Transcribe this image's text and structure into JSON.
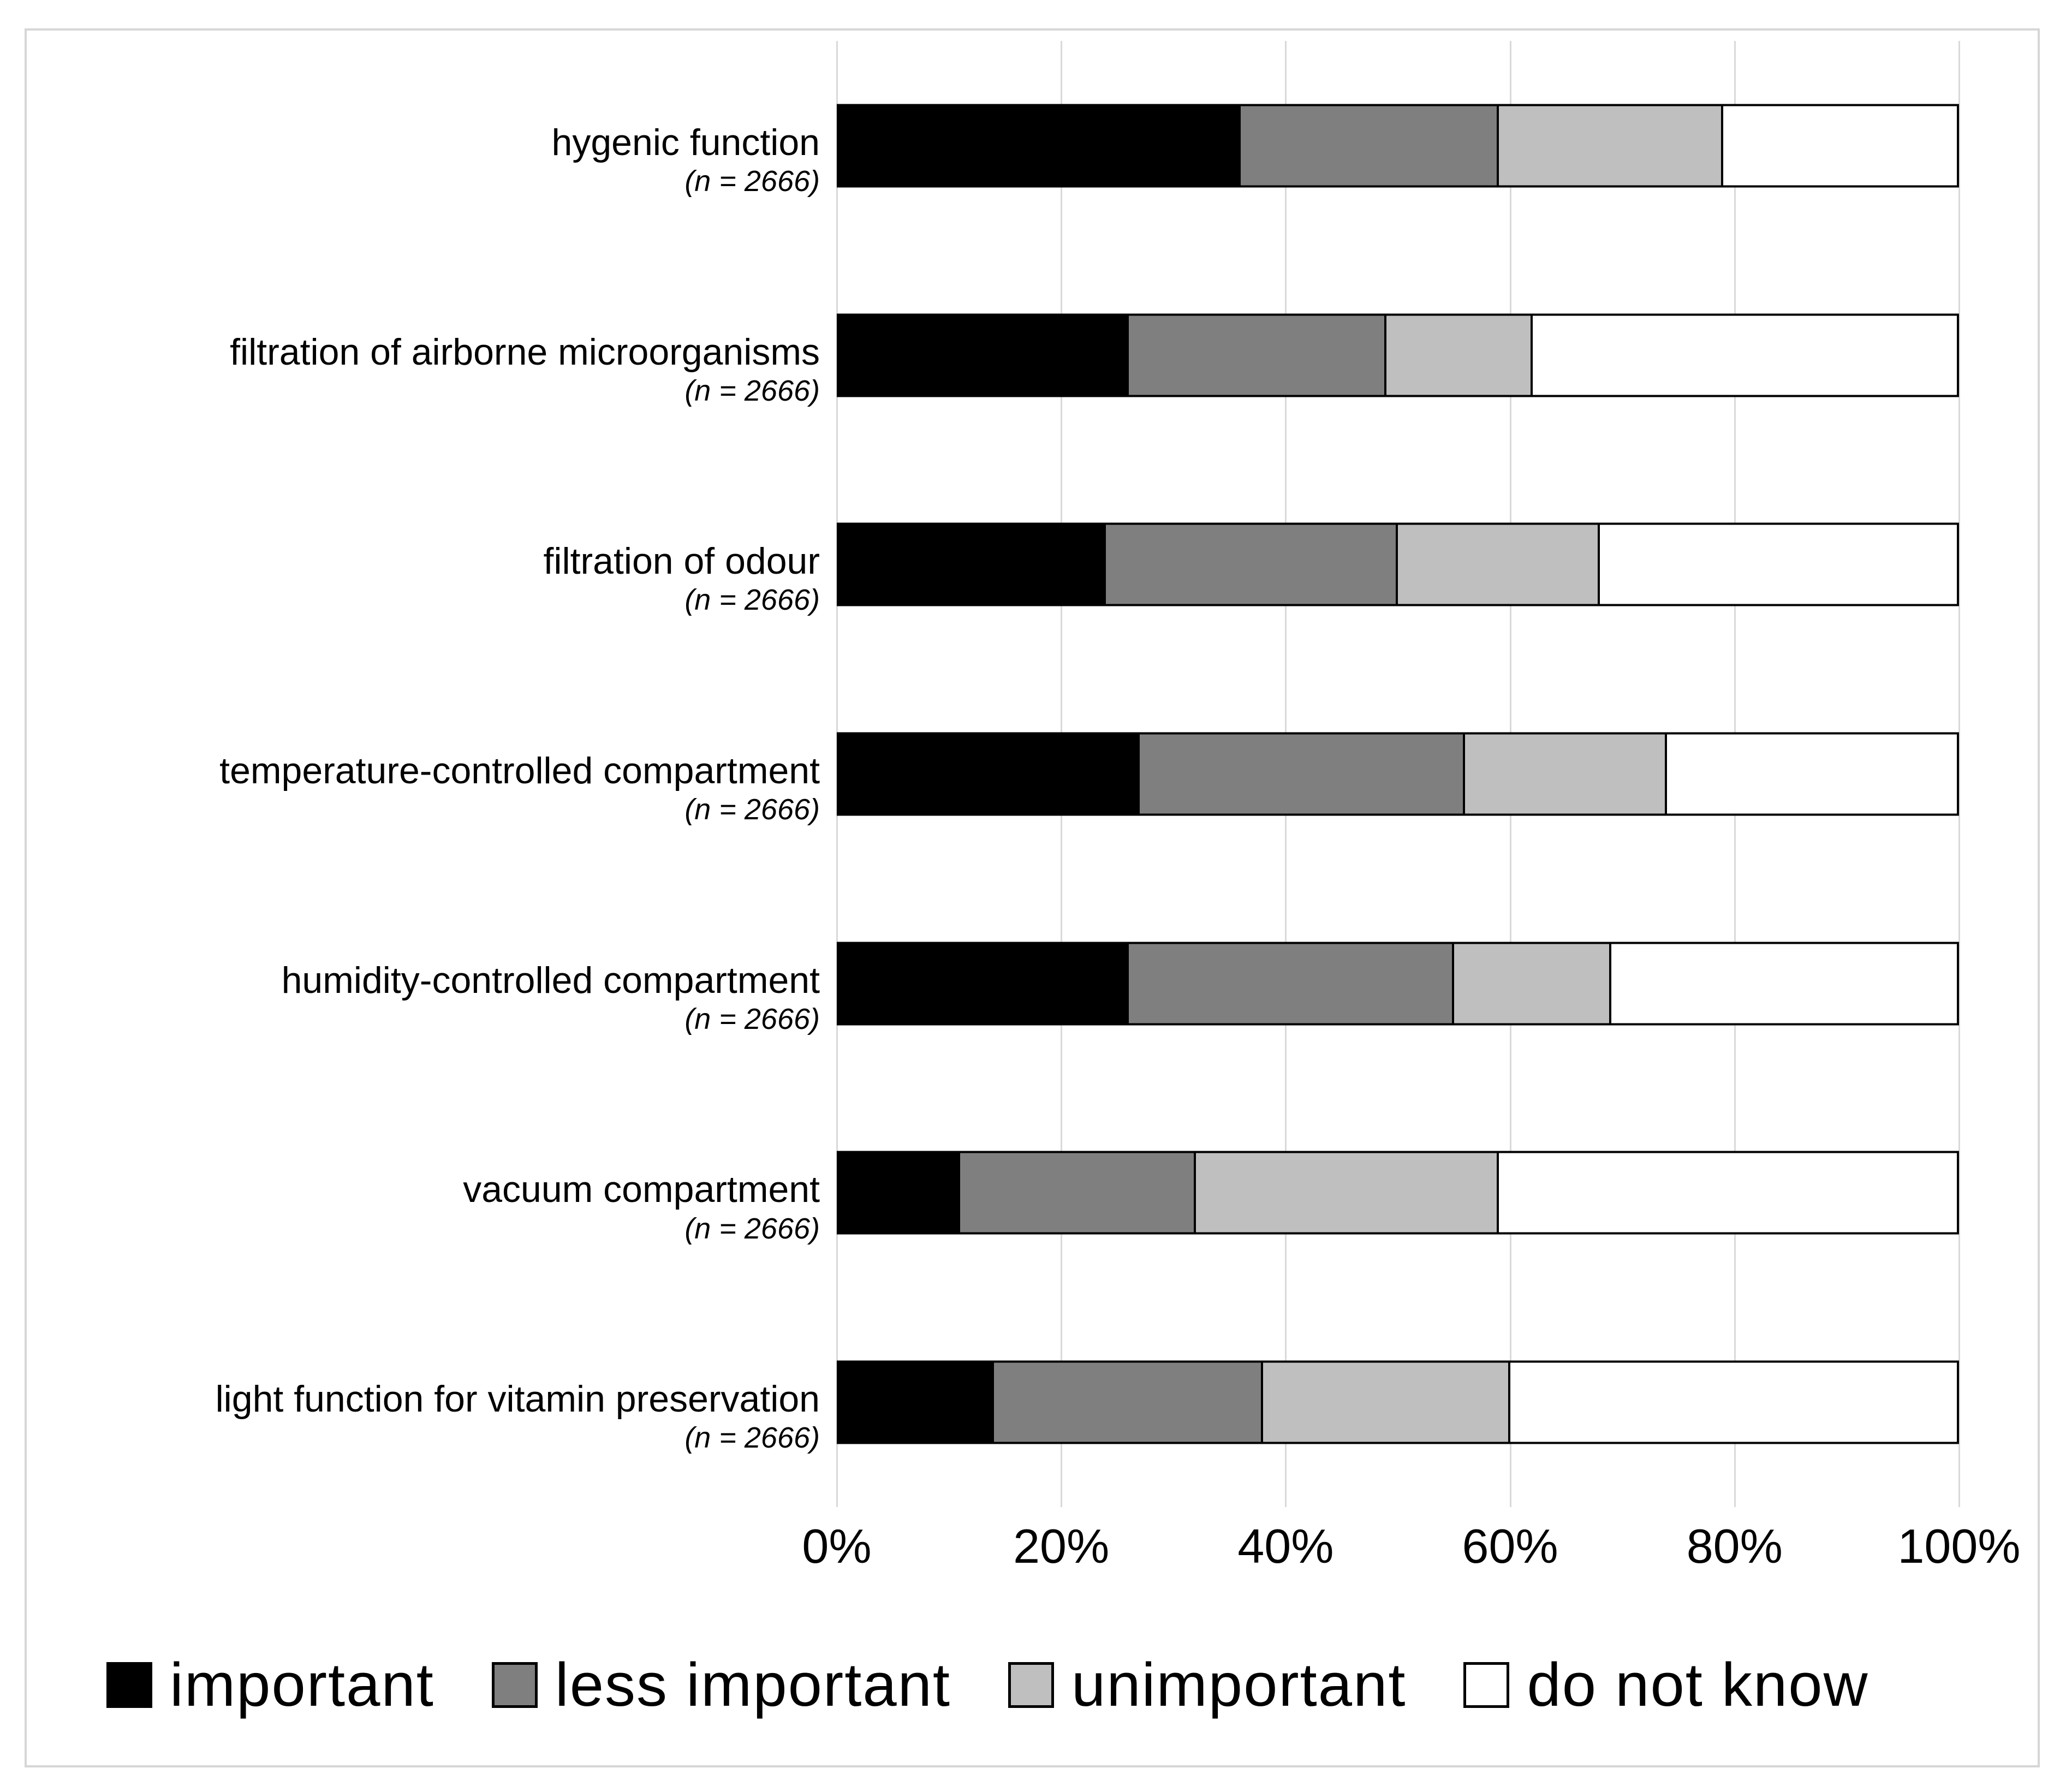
{
  "figure": {
    "background_color": "#ffffff",
    "frame_color": "#d6d6d6",
    "gridline_color": "#d9d9d9"
  },
  "chart_data": {
    "type": "bar",
    "orientation": "horizontal_stacked",
    "title": "",
    "xlabel": "",
    "ylabel": "",
    "xlim": [
      0,
      100
    ],
    "x_tick_labels": [
      "0%",
      "20%",
      "40%",
      "60%",
      "80%",
      "100%"
    ],
    "grid": true,
    "legend_position": "bottom",
    "categories": [
      {
        "label": "hygenic function",
        "note": "(n = 2666)"
      },
      {
        "label": "filtration of airborne microorganisms",
        "note": "(n = 2666)"
      },
      {
        "label": "filtration of odour",
        "note": "(n = 2666)"
      },
      {
        "label": "temperature-controlled compartment",
        "note": "(n = 2666)"
      },
      {
        "label": "humidity-controlled compartment",
        "note": "(n = 2666)"
      },
      {
        "label": "vacuum compartment",
        "note": "(n = 2666)"
      },
      {
        "label": "light function for vitamin preservation",
        "note": "(n = 2666)"
      }
    ],
    "series": [
      {
        "name": "important",
        "color": "#000000",
        "values": [
          36,
          26,
          24,
          27,
          26,
          11,
          14
        ]
      },
      {
        "name": "less important",
        "color": "#7f7f7f",
        "values": [
          23,
          23,
          26,
          29,
          29,
          21,
          24
        ]
      },
      {
        "name": "unimportant",
        "color": "#bfbfbf",
        "values": [
          20,
          13,
          18,
          18,
          14,
          27,
          22
        ]
      },
      {
        "name": "do not know",
        "color": "#ffffff",
        "values": [
          21,
          38,
          32,
          26,
          31,
          41,
          40
        ]
      }
    ]
  }
}
